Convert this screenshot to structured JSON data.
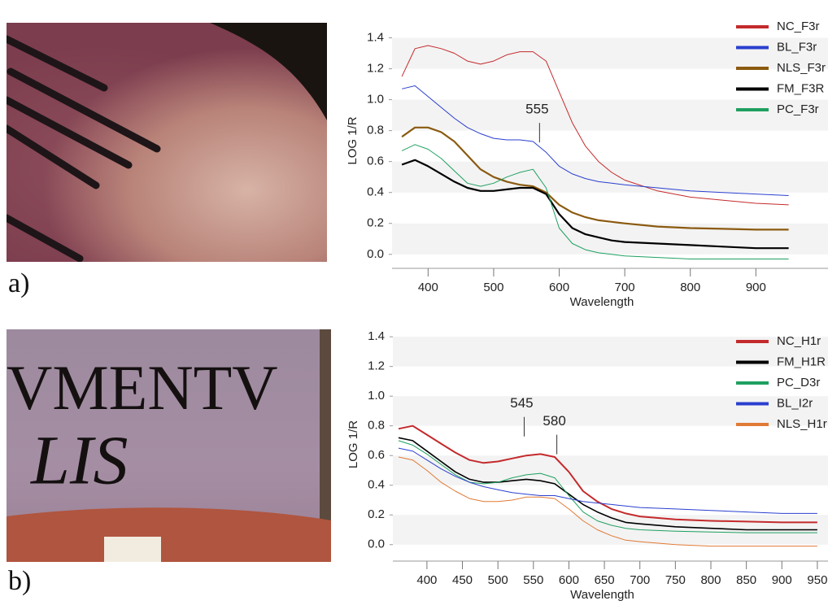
{
  "figure": {
    "panels": [
      {
        "label": "a)"
      },
      {
        "label": "b)",
        "photo_text": [
          "VMENTV",
          "LIS"
        ]
      }
    ]
  },
  "chart_data": [
    {
      "type": "line",
      "x_label": "Wavelength",
      "y_label": "LOG 1/R",
      "xlim": [
        345,
        1010
      ],
      "ylim": [
        -0.08,
        1.55
      ],
      "xticks": [
        400,
        500,
        600,
        700,
        800,
        900
      ],
      "yticks": [
        {
          "value": 0,
          "label": "0.0"
        },
        0.2,
        0.4,
        0.6,
        0.8,
        {
          "value": 1,
          "label": "1.0"
        },
        1.2,
        1.4
      ],
      "grid": "bands",
      "legend": "upper right",
      "x": [
        360,
        380,
        400,
        420,
        440,
        460,
        480,
        500,
        520,
        540,
        560,
        580,
        600,
        620,
        640,
        660,
        680,
        700,
        750,
        800,
        850,
        900,
        950
      ],
      "series": [
        {
          "name": "NC_F3r",
          "color": "#c42a2c",
          "linewidth": 1,
          "values": [
            1.15,
            1.33,
            1.35,
            1.33,
            1.3,
            1.25,
            1.23,
            1.25,
            1.29,
            1.31,
            1.31,
            1.25,
            1.05,
            0.85,
            0.7,
            0.6,
            0.53,
            0.48,
            0.41,
            0.37,
            0.35,
            0.33,
            0.32
          ]
        },
        {
          "name": "BL_F3r",
          "color": "#2a3fcf",
          "linewidth": 1,
          "values": [
            1.07,
            1.09,
            1.02,
            0.95,
            0.88,
            0.82,
            0.78,
            0.75,
            0.74,
            0.74,
            0.73,
            0.66,
            0.57,
            0.52,
            0.49,
            0.47,
            0.46,
            0.45,
            0.43,
            0.41,
            0.4,
            0.39,
            0.38
          ]
        },
        {
          "name": "NLS_F3r",
          "color": "#8b5a10",
          "linewidth": 2.2,
          "values": [
            0.76,
            0.82,
            0.82,
            0.79,
            0.73,
            0.64,
            0.55,
            0.5,
            0.47,
            0.45,
            0.44,
            0.4,
            0.32,
            0.27,
            0.24,
            0.22,
            0.21,
            0.2,
            0.18,
            0.17,
            0.165,
            0.16,
            0.16
          ]
        },
        {
          "name": "FM_F3R",
          "color": "#000000",
          "linewidth": 2.2,
          "values": [
            0.58,
            0.61,
            0.57,
            0.52,
            0.47,
            0.43,
            0.41,
            0.41,
            0.42,
            0.43,
            0.43,
            0.39,
            0.26,
            0.17,
            0.13,
            0.11,
            0.09,
            0.08,
            0.07,
            0.06,
            0.05,
            0.04,
            0.04
          ]
        },
        {
          "name": "PC_F3r",
          "color": "#1fa060",
          "linewidth": 1,
          "values": [
            0.67,
            0.71,
            0.68,
            0.62,
            0.54,
            0.46,
            0.44,
            0.46,
            0.5,
            0.53,
            0.55,
            0.43,
            0.17,
            0.07,
            0.03,
            0.01,
            0,
            -0.01,
            -0.02,
            -0.03,
            -0.03,
            -0.03,
            -0.03
          ]
        }
      ],
      "annotations": [
        {
          "text": "555",
          "x": 570,
          "y": 0.85
        }
      ]
    },
    {
      "type": "line",
      "x_label": "Wavelength",
      "y_label": "LOG 1/R",
      "xlim": [
        352,
        965
      ],
      "ylim": [
        -0.1,
        1.45
      ],
      "xticks": [
        400,
        450,
        500,
        550,
        600,
        650,
        700,
        750,
        800,
        850,
        900,
        950
      ],
      "yticks": [
        {
          "value": 0,
          "label": "0.0"
        },
        0.2,
        0.4,
        0.6,
        0.8,
        {
          "value": 1,
          "label": "1.0"
        },
        1.2,
        1.4
      ],
      "grid": "bands",
      "legend": "upper right",
      "x": [
        360,
        380,
        400,
        420,
        440,
        460,
        480,
        500,
        520,
        540,
        560,
        580,
        600,
        620,
        640,
        660,
        680,
        700,
        750,
        800,
        850,
        900,
        950
      ],
      "series": [
        {
          "name": "NC_H1r",
          "color": "#c42a2c",
          "linewidth": 2,
          "values": [
            0.78,
            0.8,
            0.74,
            0.68,
            0.62,
            0.57,
            0.55,
            0.56,
            0.58,
            0.6,
            0.61,
            0.59,
            0.49,
            0.36,
            0.29,
            0.24,
            0.21,
            0.19,
            0.17,
            0.16,
            0.155,
            0.15,
            0.15
          ]
        },
        {
          "name": "FM_H1R",
          "color": "#000000",
          "linewidth": 1.6,
          "values": [
            0.72,
            0.7,
            0.63,
            0.56,
            0.49,
            0.44,
            0.42,
            0.42,
            0.43,
            0.44,
            0.43,
            0.41,
            0.34,
            0.27,
            0.22,
            0.18,
            0.15,
            0.14,
            0.12,
            0.11,
            0.1,
            0.1,
            0.1
          ]
        },
        {
          "name": "PC_D3r",
          "color": "#1fa060",
          "linewidth": 1,
          "values": [
            0.7,
            0.67,
            0.61,
            0.54,
            0.47,
            0.42,
            0.41,
            0.42,
            0.45,
            0.47,
            0.48,
            0.45,
            0.33,
            0.22,
            0.16,
            0.13,
            0.11,
            0.1,
            0.09,
            0.085,
            0.08,
            0.08,
            0.08
          ]
        },
        {
          "name": "BL_I2r",
          "color": "#2a3fcf",
          "linewidth": 1,
          "values": [
            0.65,
            0.63,
            0.57,
            0.51,
            0.46,
            0.42,
            0.39,
            0.37,
            0.35,
            0.34,
            0.33,
            0.33,
            0.31,
            0.29,
            0.28,
            0.27,
            0.26,
            0.25,
            0.24,
            0.23,
            0.22,
            0.21,
            0.21
          ]
        },
        {
          "name": "NLS_H1r",
          "color": "#e07a35",
          "linewidth": 1,
          "values": [
            0.59,
            0.57,
            0.5,
            0.42,
            0.36,
            0.31,
            0.29,
            0.29,
            0.3,
            0.32,
            0.32,
            0.31,
            0.24,
            0.16,
            0.1,
            0.06,
            0.03,
            0.02,
            0,
            -0.01,
            -0.01,
            -0.01,
            -0.01
          ]
        }
      ],
      "annotations": [
        {
          "text": "545",
          "x": 537,
          "y": 0.86
        },
        {
          "text": "580",
          "x": 583,
          "y": 0.74
        }
      ]
    }
  ]
}
